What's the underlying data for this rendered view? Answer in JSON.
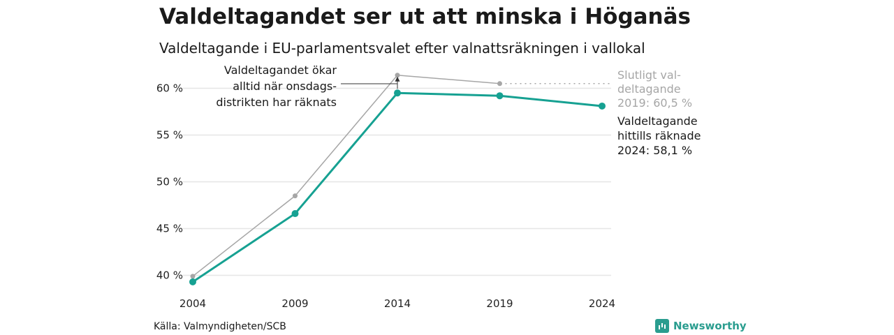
{
  "title": "Valdeltagandet ser ut att minska i Höganäs",
  "subtitle": "Valdeltagande i EU-parlamentsvalet efter valnattsräkningen i vallokal",
  "source": "Källa: Valmyndigheten/SCB",
  "brand": "Newsworthy",
  "colors": {
    "final": "#a6a6a6",
    "counted": "#16a192",
    "grid": "#e6e6e6",
    "text": "#1a1a1a"
  },
  "chart_data": {
    "type": "line",
    "x": [
      2004,
      2009,
      2014,
      2019,
      2024
    ],
    "ylim": [
      39,
      62
    ],
    "yticks": [
      40,
      45,
      50,
      55,
      60
    ],
    "ytick_labels": [
      "40 %",
      "45 %",
      "50 %",
      "55 %",
      "60 %"
    ],
    "grid": true,
    "series": [
      {
        "name": "Slutligt valdeltagande",
        "color": "#a6a6a6",
        "values": [
          39.9,
          48.5,
          61.4,
          60.5,
          null
        ]
      },
      {
        "name": "Valdeltagande hittills räknade",
        "color": "#16a192",
        "values": [
          39.3,
          46.6,
          59.5,
          59.2,
          58.1
        ]
      }
    ],
    "annotations": {
      "left": [
        "Valdeltagandet ökar",
        "alltid när onsdags-",
        "distrikten har räknats"
      ],
      "final": [
        "Slutligt val-",
        "deltagande",
        "2019: 60,5 %"
      ],
      "counted": [
        "Valdeltagande",
        "hittills räknade",
        "2024: 58,1 %"
      ]
    }
  }
}
